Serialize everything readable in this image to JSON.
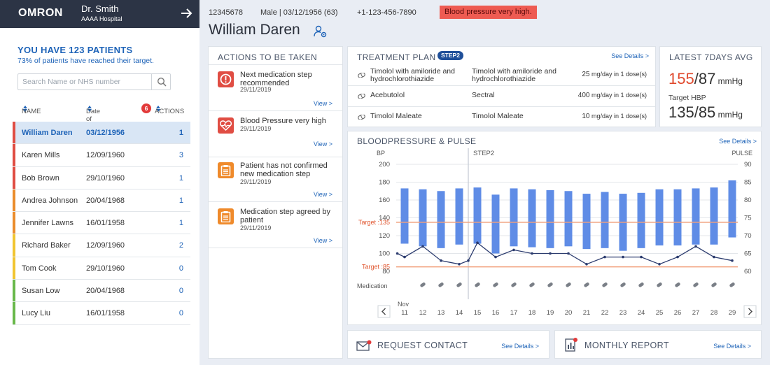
{
  "app": {
    "logo": "OMRON",
    "doctor": "Dr. Smith",
    "hospital": "AAAA Hospital"
  },
  "sidebar": {
    "count_text": "YOU HAVE 123 PATIENTS",
    "sub_text": "73% of patients have reached their target.",
    "search_placeholder": "Search Name or NHS number",
    "headers": {
      "name": "NAME",
      "dob": "Date of Birth",
      "actions_badge": "6",
      "actions": "ACTIONS"
    },
    "patients": [
      {
        "name": "William Daren",
        "dob": "03/12/1956",
        "actions": "1",
        "color": "#e04d43",
        "selected": true
      },
      {
        "name": "Karen Mills",
        "dob": "12/09/1960",
        "actions": "3",
        "color": "#e04d43"
      },
      {
        "name": "Bob Brown",
        "dob": "29/10/1960",
        "actions": "1",
        "color": "#e04d43"
      },
      {
        "name": "Andrea Johnson",
        "dob": "20/04/1968",
        "actions": "1",
        "color": "#ea8c2c"
      },
      {
        "name": "Jennifer Lawns",
        "dob": "16/01/1958",
        "actions": "1",
        "color": "#ea8c2c"
      },
      {
        "name": "Richard Baker",
        "dob": "12/09/1960",
        "actions": "2",
        "color": "#f1c531"
      },
      {
        "name": "Tom Cook",
        "dob": "29/10/1960",
        "actions": "0",
        "color": "#f1c531"
      },
      {
        "name": "Susan Low",
        "dob": "20/04/1968",
        "actions": "0",
        "color": "#69b84a"
      },
      {
        "name": "Lucy Liu",
        "dob": "16/01/1958",
        "actions": "0",
        "color": "#69b84a"
      }
    ]
  },
  "patient": {
    "id": "12345678",
    "demographics": "Male | 03/12/1956 (63)",
    "phone": "+1-123-456-7890",
    "alert": "Blood pressure very high.",
    "name": "William Daren"
  },
  "actions_panel": {
    "title": "ACTIONS TO BE TAKEN",
    "view_label": "View >",
    "items": [
      {
        "icon": "alert-icon",
        "color": "#e04d43",
        "text": "Next medication step recommended",
        "date": "29/11/2019"
      },
      {
        "icon": "heart-pulse-icon",
        "color": "#e04d43",
        "text": "Blood Pressure very high",
        "date": "29/11/2019"
      },
      {
        "icon": "clipboard-icon",
        "color": "#ef8a2b",
        "text": "Patient has not confirmed new medication step",
        "date": "29/11/2019"
      },
      {
        "icon": "clipboard-icon",
        "color": "#ef8a2b",
        "text": "Medication step agreed by patient",
        "date": "29/11/2019"
      }
    ]
  },
  "treatment": {
    "title": "TREATMENT PLAN",
    "step": "STEP2",
    "see_details": "See Details >",
    "rows": [
      {
        "generic": "Timolol with amiloride and hydrochlorothiazide",
        "brand": "Timolol with amiloride and hydrochlorothiazide",
        "dose_num": "25",
        "dose_unit": " mg/day in 1 dose(s)"
      },
      {
        "generic": "Acebutolol",
        "brand": "Sectral",
        "dose_num": "400",
        "dose_unit": " mg/day in 1 dose(s)"
      },
      {
        "generic": "Timolol Maleate",
        "brand": "Timolol Maleate",
        "dose_num": "10",
        "dose_unit": " mg/day in 1 dose(s)"
      }
    ]
  },
  "latest_avg": {
    "title": "LATEST 7DAYS AVG",
    "systolic": "155",
    "diastolic": "/87",
    "unit": " mmHg",
    "target_label": "Target HBP",
    "target_value": "135/85",
    "target_unit": " mmHg"
  },
  "bottom": {
    "contact_title": "REQUEST CONTACT",
    "report_title": "MONTHLY REPORT",
    "see_details": "See Details >"
  },
  "chart_data": {
    "type": "bar",
    "title": "BLOODPRESSURE  & PULSE",
    "see_details": "See Details >",
    "left_axis_label": "BP",
    "right_axis_label": "PULSE",
    "left_ylim": [
      80,
      200
    ],
    "left_ticks": [
      "200",
      "180",
      "160",
      "140",
      "120",
      "100",
      "80"
    ],
    "right_ylim": [
      60,
      90
    ],
    "right_ticks": [
      "90",
      "85",
      "80",
      "75",
      "70",
      "65",
      "60"
    ],
    "month_label": "Nov",
    "step_label": "STEP2",
    "step_after_day": "14",
    "target_systolic": 135,
    "target_systolic_label": "Target :135",
    "target_diastolic": 85,
    "target_diastolic_label": "Target :85",
    "medication_label": "Medication",
    "days": [
      "11",
      "12",
      "13",
      "14",
      "15",
      "16",
      "17",
      "18",
      "19",
      "20",
      "21",
      "22",
      "23",
      "24",
      "25",
      "26",
      "27",
      "28",
      "29"
    ],
    "bp_high": [
      173,
      172,
      170,
      173,
      174,
      166,
      173,
      172,
      171,
      170,
      167,
      169,
      167,
      168,
      172,
      172,
      173,
      174,
      182
    ],
    "bp_low": [
      111,
      108,
      106,
      110,
      111,
      100,
      108,
      107,
      106,
      108,
      105,
      106,
      103,
      106,
      109,
      109,
      110,
      110,
      118
    ],
    "pulse": [
      65,
      64,
      67,
      63,
      62,
      63,
      68,
      64,
      66,
      65,
      65,
      65,
      62,
      64,
      64,
      64,
      62,
      64,
      67,
      64,
      63
    ],
    "pulse_x": [
      "10.6",
      "11",
      "12",
      "13",
      "14",
      "14.5",
      "15",
      "16",
      "17",
      "18",
      "19",
      "20",
      "21",
      "22",
      "23",
      "24",
      "25",
      "26",
      "27",
      "28",
      "29"
    ],
    "medication_days": [
      "12",
      "13",
      "14",
      "15",
      "16",
      "17",
      "18",
      "19",
      "20",
      "21",
      "22",
      "23",
      "24",
      "25",
      "26",
      "27",
      "28",
      "29"
    ],
    "grid": true
  }
}
